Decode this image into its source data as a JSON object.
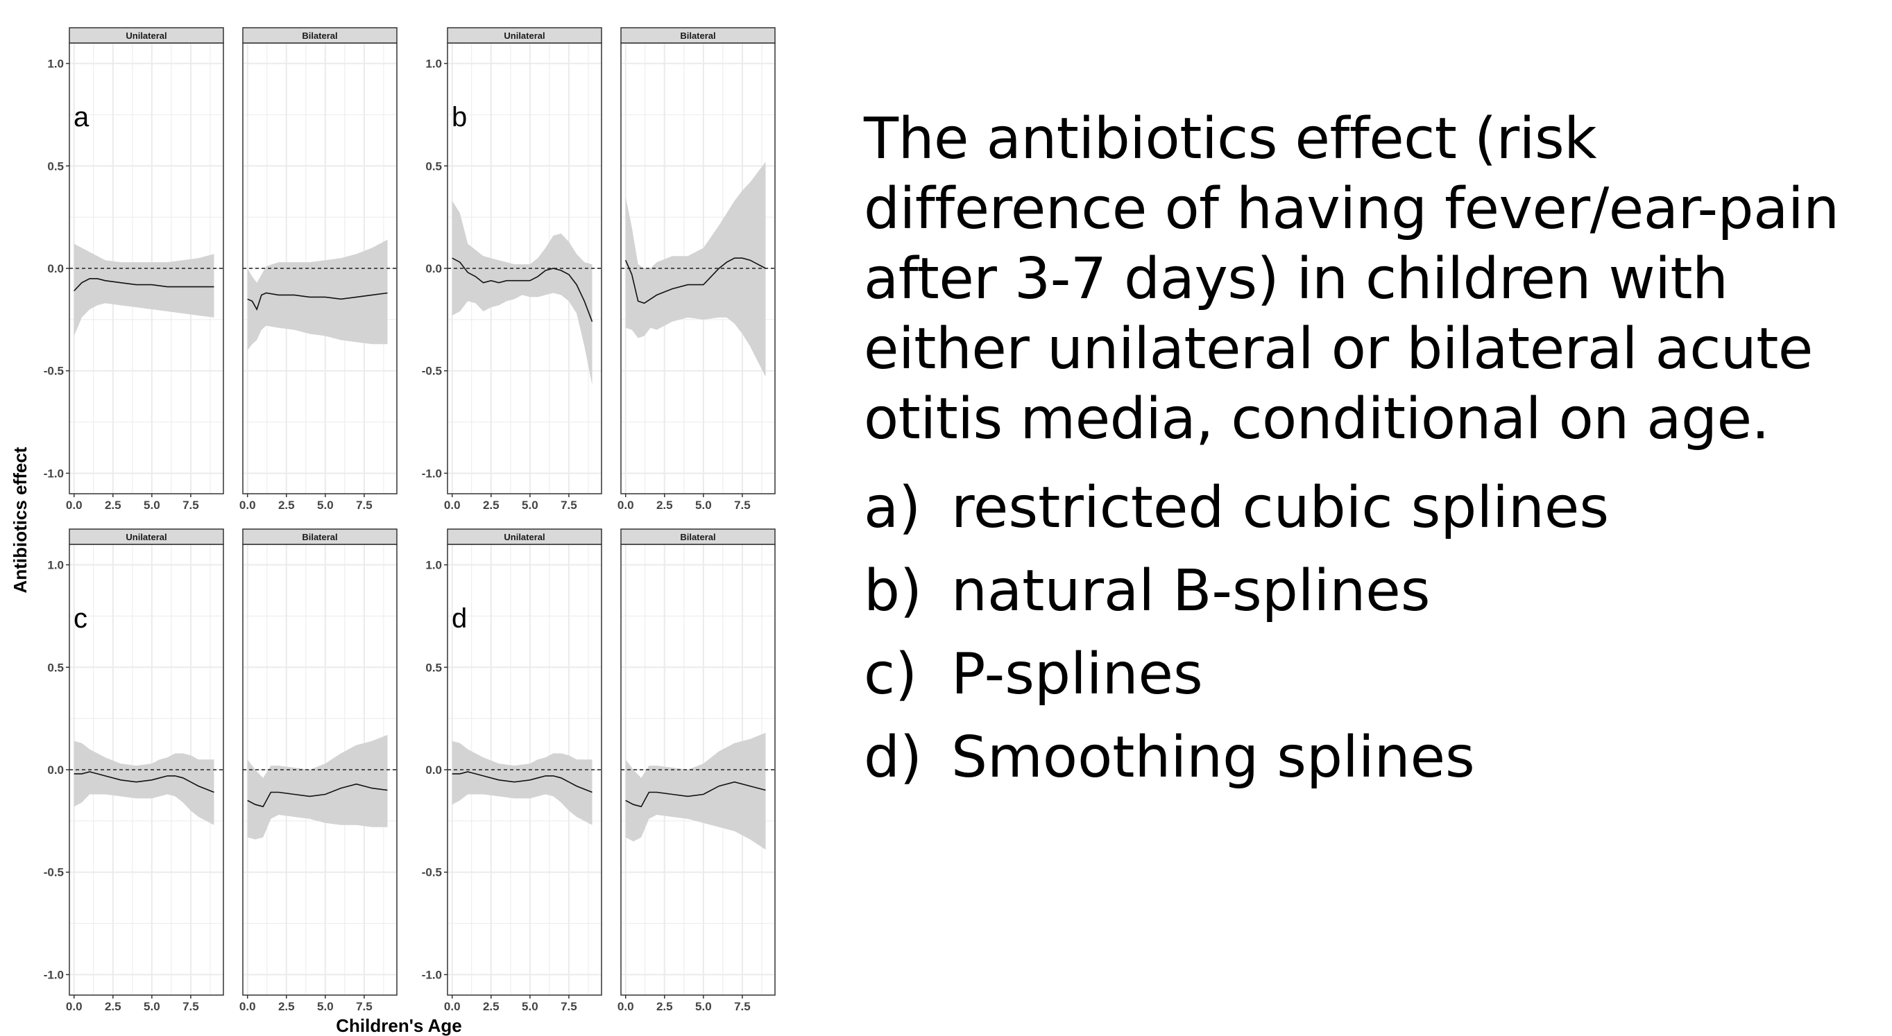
{
  "chart_data": {
    "type": "line",
    "layout": "2x2 panel groups, each with two facets (Unilateral, Bilateral); line with shaded confidence band; dashed reference line at y=0",
    "ylabel": "Antibiotics effect",
    "xlabel": "Children's Age",
    "ylim": [
      -1.1,
      1.1
    ],
    "y_ticks": [
      1.0,
      0.5,
      0.0,
      -0.5,
      -1.0
    ],
    "y_tick_labels": [
      "1.0",
      "0.5",
      "0.0",
      "-0.5",
      "-1.0"
    ],
    "xlim": [
      -0.3,
      9.6
    ],
    "x_ticks": [
      0,
      2.5,
      5,
      7.5
    ],
    "x_tick_labels": [
      "0.0",
      "2.5",
      "5.0",
      "7.5"
    ],
    "reference_line_y": 0,
    "grid": true,
    "colors": {
      "line": "#111111",
      "band": "#d3d3d3",
      "strip": "#d9d9d9",
      "panel_border": "#333333",
      "grid": "#ebebeb"
    },
    "groups": [
      {
        "letter": "a",
        "facets": [
          {
            "name": "Unilateral",
            "x": [
              0,
              0.5,
              1,
              1.5,
              2,
              3,
              4,
              5,
              6,
              7,
              8,
              9
            ],
            "y": [
              -0.11,
              -0.07,
              -0.05,
              -0.05,
              -0.06,
              -0.07,
              -0.08,
              -0.08,
              -0.09,
              -0.09,
              -0.09,
              -0.09
            ],
            "lower": [
              -0.33,
              -0.24,
              -0.2,
              -0.18,
              -0.17,
              -0.18,
              -0.19,
              -0.2,
              -0.21,
              -0.22,
              -0.23,
              -0.24
            ],
            "upper": [
              0.12,
              0.1,
              0.08,
              0.06,
              0.04,
              0.03,
              0.03,
              0.03,
              0.03,
              0.04,
              0.05,
              0.07
            ]
          },
          {
            "name": "Bilateral",
            "x": [
              0,
              0.3,
              0.6,
              0.9,
              1.2,
              2,
              3,
              4,
              5,
              6,
              7,
              8,
              9
            ],
            "y": [
              -0.15,
              -0.16,
              -0.2,
              -0.13,
              -0.12,
              -0.13,
              -0.13,
              -0.14,
              -0.14,
              -0.15,
              -0.14,
              -0.13,
              -0.12
            ],
            "lower": [
              -0.4,
              -0.37,
              -0.35,
              -0.3,
              -0.28,
              -0.29,
              -0.3,
              -0.32,
              -0.33,
              -0.35,
              -0.36,
              -0.37,
              -0.37
            ],
            "upper": [
              0.0,
              -0.04,
              -0.07,
              -0.03,
              0.01,
              0.03,
              0.03,
              0.03,
              0.04,
              0.05,
              0.07,
              0.1,
              0.14
            ]
          }
        ]
      },
      {
        "letter": "b",
        "facets": [
          {
            "name": "Unilateral",
            "x": [
              0,
              0.5,
              1,
              1.5,
              2,
              2.5,
              3,
              3.5,
              4,
              4.5,
              5,
              5.5,
              6,
              6.5,
              7,
              7.5,
              8,
              8.5,
              9
            ],
            "y": [
              0.05,
              0.03,
              -0.02,
              -0.04,
              -0.07,
              -0.06,
              -0.07,
              -0.06,
              -0.06,
              -0.06,
              -0.06,
              -0.04,
              -0.01,
              0.0,
              -0.01,
              -0.03,
              -0.08,
              -0.16,
              -0.26
            ],
            "lower": [
              -0.23,
              -0.21,
              -0.16,
              -0.17,
              -0.21,
              -0.19,
              -0.18,
              -0.16,
              -0.15,
              -0.13,
              -0.14,
              -0.14,
              -0.13,
              -0.12,
              -0.13,
              -0.16,
              -0.22,
              -0.38,
              -0.57
            ],
            "upper": [
              0.33,
              0.27,
              0.12,
              0.09,
              0.06,
              0.05,
              0.04,
              0.03,
              0.02,
              0.02,
              0.02,
              0.05,
              0.1,
              0.16,
              0.17,
              0.13,
              0.07,
              0.03,
              0.02
            ]
          },
          {
            "name": "Bilateral",
            "x": [
              0,
              0.4,
              0.8,
              1.2,
              1.6,
              2,
              3,
              4,
              5,
              6,
              6.5,
              7,
              7.5,
              8,
              9
            ],
            "y": [
              0.04,
              -0.03,
              -0.16,
              -0.17,
              -0.15,
              -0.13,
              -0.1,
              -0.08,
              -0.08,
              0.0,
              0.03,
              0.05,
              0.05,
              0.04,
              0.0
            ],
            "lower": [
              -0.29,
              -0.3,
              -0.34,
              -0.33,
              -0.29,
              -0.3,
              -0.26,
              -0.24,
              -0.25,
              -0.24,
              -0.24,
              -0.27,
              -0.32,
              -0.38,
              -0.53
            ],
            "upper": [
              0.35,
              0.2,
              0.02,
              0.0,
              0.0,
              0.03,
              0.06,
              0.06,
              0.1,
              0.21,
              0.27,
              0.33,
              0.38,
              0.42,
              0.52
            ]
          }
        ]
      },
      {
        "letter": "c",
        "facets": [
          {
            "name": "Unilateral",
            "x": [
              0,
              0.5,
              1,
              1.5,
              2,
              3,
              4,
              5,
              5.5,
              6,
              6.5,
              7,
              7.5,
              8,
              9
            ],
            "y": [
              -0.02,
              -0.02,
              -0.01,
              -0.02,
              -0.03,
              -0.05,
              -0.06,
              -0.05,
              -0.04,
              -0.03,
              -0.03,
              -0.04,
              -0.06,
              -0.08,
              -0.11
            ],
            "lower": [
              -0.18,
              -0.16,
              -0.12,
              -0.12,
              -0.12,
              -0.13,
              -0.14,
              -0.14,
              -0.13,
              -0.12,
              -0.13,
              -0.16,
              -0.2,
              -0.23,
              -0.27
            ],
            "upper": [
              0.14,
              0.13,
              0.1,
              0.08,
              0.06,
              0.03,
              0.02,
              0.03,
              0.05,
              0.06,
              0.08,
              0.08,
              0.07,
              0.05,
              0.05
            ]
          },
          {
            "name": "Bilateral",
            "x": [
              0,
              0.5,
              1,
              1.5,
              2,
              3,
              4,
              5,
              6,
              7,
              8,
              9
            ],
            "y": [
              -0.15,
              -0.17,
              -0.18,
              -0.11,
              -0.11,
              -0.12,
              -0.13,
              -0.12,
              -0.09,
              -0.07,
              -0.09,
              -0.1
            ],
            "lower": [
              -0.33,
              -0.34,
              -0.33,
              -0.24,
              -0.22,
              -0.23,
              -0.24,
              -0.26,
              -0.27,
              -0.27,
              -0.28,
              -0.28
            ],
            "upper": [
              0.05,
              0.0,
              -0.04,
              0.02,
              0.02,
              0.01,
              0.0,
              0.03,
              0.08,
              0.12,
              0.14,
              0.17
            ]
          }
        ]
      },
      {
        "letter": "d",
        "facets": [
          {
            "name": "Unilateral",
            "x": [
              0,
              0.5,
              1,
              1.5,
              2,
              3,
              4,
              5,
              5.5,
              6,
              6.5,
              7,
              7.5,
              8,
              9
            ],
            "y": [
              -0.02,
              -0.02,
              -0.01,
              -0.02,
              -0.03,
              -0.05,
              -0.06,
              -0.05,
              -0.04,
              -0.03,
              -0.03,
              -0.04,
              -0.06,
              -0.08,
              -0.11
            ],
            "lower": [
              -0.17,
              -0.15,
              -0.12,
              -0.12,
              -0.12,
              -0.13,
              -0.14,
              -0.14,
              -0.13,
              -0.12,
              -0.13,
              -0.16,
              -0.2,
              -0.23,
              -0.27
            ],
            "upper": [
              0.14,
              0.13,
              0.1,
              0.08,
              0.06,
              0.03,
              0.02,
              0.03,
              0.05,
              0.06,
              0.08,
              0.08,
              0.07,
              0.05,
              0.05
            ]
          },
          {
            "name": "Bilateral",
            "x": [
              0,
              0.5,
              1,
              1.5,
              2,
              3,
              4,
              5,
              6,
              7,
              8,
              9
            ],
            "y": [
              -0.15,
              -0.17,
              -0.18,
              -0.11,
              -0.11,
              -0.12,
              -0.13,
              -0.12,
              -0.08,
              -0.06,
              -0.08,
              -0.1
            ],
            "lower": [
              -0.33,
              -0.35,
              -0.33,
              -0.24,
              -0.22,
              -0.23,
              -0.24,
              -0.26,
              -0.28,
              -0.3,
              -0.34,
              -0.39
            ],
            "upper": [
              0.05,
              0.0,
              -0.04,
              0.02,
              0.02,
              0.01,
              0.0,
              0.03,
              0.09,
              0.13,
              0.15,
              0.18
            ]
          }
        ]
      }
    ]
  },
  "caption": {
    "text": "The antibiotics effect (risk difference of having fever/ear-pain after 3-7 days) in children with either unilateral or bilateral acute otitis media, conditional on age.",
    "items": [
      {
        "marker": "a)",
        "label": "restricted cubic splines"
      },
      {
        "marker": "b)",
        "label": "natural B-splines"
      },
      {
        "marker": "c)",
        "label": "P-splines"
      },
      {
        "marker": "d)",
        "label": "Smoothing splines"
      }
    ]
  }
}
